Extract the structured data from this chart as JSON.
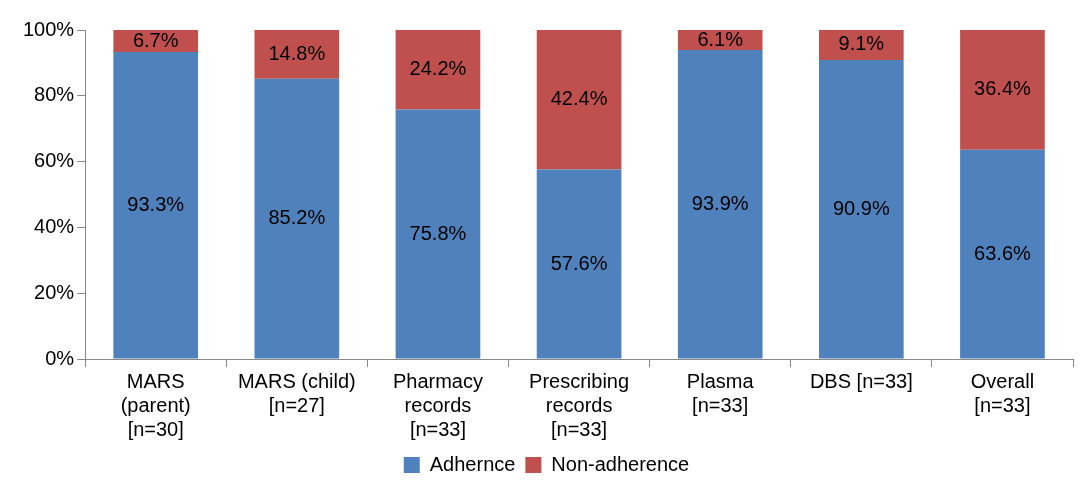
{
  "chart_data": {
    "type": "bar",
    "stacked": true,
    "categories": [
      "MARS (parent) [n=30]",
      "MARS (child) [n=27]",
      "Pharmacy records [n=33]",
      "Prescribing records [n=33]",
      "Plasma [n=33]",
      "DBS [n=33]",
      "Overall [n=33]"
    ],
    "series": [
      {
        "name": "Adhernce",
        "color": "#4f81bd",
        "values": [
          93.3,
          85.2,
          75.8,
          57.6,
          93.9,
          90.9,
          63.6
        ],
        "value_labels": [
          "93.3%",
          "85.2%",
          "75.8%",
          "57.6%",
          "93.9%",
          "90.9%",
          "63.6%"
        ]
      },
      {
        "name": "Non-adherence",
        "color": "#c0504d",
        "values": [
          6.7,
          14.8,
          24.2,
          42.4,
          6.1,
          9.1,
          36.4
        ],
        "value_labels": [
          "6.7%",
          "14.8%",
          "24.2%",
          "42.4%",
          "6.1%",
          "9.1%",
          "36.4%"
        ]
      }
    ],
    "ylim": [
      0,
      100
    ],
    "yticks": [
      {
        "value": 0,
        "label": "0%"
      },
      {
        "value": 20,
        "label": "20%"
      },
      {
        "value": 40,
        "label": "40%"
      },
      {
        "value": 60,
        "label": "60%"
      },
      {
        "value": 80,
        "label": "80%"
      },
      {
        "value": 100,
        "label": "100%"
      }
    ],
    "grid": false,
    "legend": "bottom"
  }
}
